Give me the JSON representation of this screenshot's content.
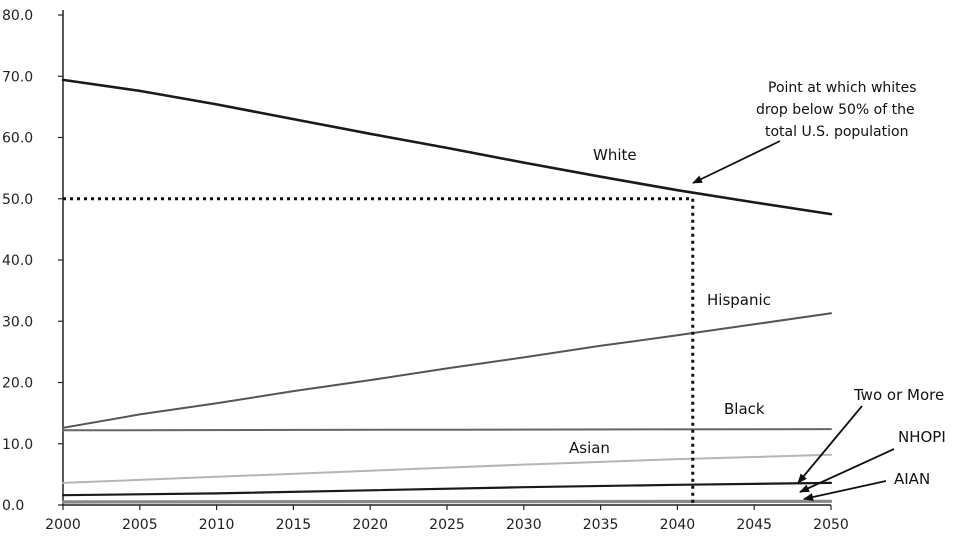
{
  "chart_data": {
    "type": "line",
    "title": "",
    "xlabel": "",
    "ylabel": "",
    "xlim": [
      2000,
      2050
    ],
    "ylim": [
      0,
      80
    ],
    "x_ticks": [
      "2000",
      "2005",
      "2010",
      "2015",
      "2020",
      "2025",
      "2030",
      "2035",
      "2040",
      "2045",
      "2050"
    ],
    "y_ticks": [
      "0.0",
      "10.0",
      "20.0",
      "30.0",
      "40.0",
      "50.0",
      "60.0",
      "70.0",
      "80.0"
    ],
    "grid": false,
    "legend": "none",
    "series": [
      {
        "name": "White",
        "color": "#1a1a1a",
        "x": [
          2000,
          2005,
          2010,
          2015,
          2020,
          2025,
          2030,
          2035,
          2040,
          2045,
          2050
        ],
        "y": [
          69.4,
          67.6,
          65.4,
          63.0,
          60.6,
          58.3,
          55.9,
          53.6,
          51.4,
          49.4,
          47.5
        ]
      },
      {
        "name": "Hispanic",
        "color": "#555555",
        "x": [
          2000,
          2005,
          2010,
          2015,
          2020,
          2025,
          2030,
          2035,
          2040,
          2045,
          2050
        ],
        "y": [
          12.6,
          14.8,
          16.6,
          18.6,
          20.4,
          22.3,
          24.1,
          26.0,
          27.7,
          29.5,
          31.3
        ]
      },
      {
        "name": "Black",
        "color": "#666666",
        "x": [
          2000,
          2025,
          2050
        ],
        "y": [
          12.2,
          12.3,
          12.4
        ]
      },
      {
        "name": "Asian",
        "color": "#b5b5b5",
        "x": [
          2000,
          2010,
          2020,
          2030,
          2040,
          2050
        ],
        "y": [
          3.6,
          4.6,
          5.6,
          6.6,
          7.5,
          8.2
        ]
      },
      {
        "name": "Two or More",
        "color": "#1a1a1a",
        "x": [
          2000,
          2010,
          2020,
          2030,
          2040,
          2050
        ],
        "y": [
          1.6,
          1.9,
          2.4,
          2.9,
          3.3,
          3.6
        ]
      },
      {
        "name": "NHOPI",
        "color": "#888888",
        "x": [
          2000,
          2050
        ],
        "y": [
          0.6,
          0.7
        ]
      },
      {
        "name": "AIAN",
        "color": "#888888",
        "x": [
          2000,
          2050
        ],
        "y": [
          0.4,
          0.5
        ]
      }
    ],
    "threshold": {
      "y": 50,
      "x": 2041
    },
    "annotation": "Point at which whites drop below 50% of the total U.S. population"
  }
}
